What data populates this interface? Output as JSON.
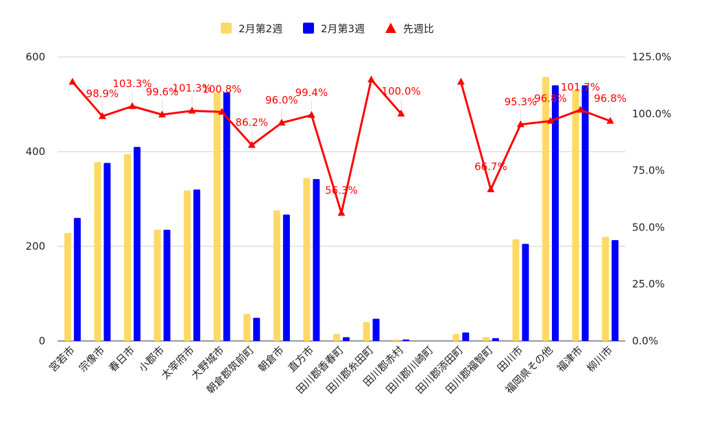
{
  "chart_data": {
    "type": "bar",
    "categories": [
      "宮若市",
      "宗像市",
      "春日市",
      "小郡市",
      "太宰府市",
      "大野城市",
      "朝倉郡筑前町",
      "朝倉市",
      "直方市",
      "田川郡香春町",
      "田川郡糸田町",
      "田川郡赤村",
      "田川郡川崎町",
      "田川郡添田町",
      "田川郡福智町",
      "田川市",
      "福岡県その他",
      "福津市",
      "柳川市"
    ],
    "series": [
      {
        "name": "2月第2週",
        "kind": "bar",
        "axis": "left",
        "color": "#ffd966",
        "values": [
          228,
          378,
          395,
          235,
          318,
          525,
          57,
          276,
          344,
          15,
          40,
          3,
          0,
          15,
          8,
          215,
          558,
          530,
          220
        ]
      },
      {
        "name": "2月第3週",
        "kind": "bar",
        "axis": "left",
        "color": "#0000ff",
        "values": [
          260,
          376,
          410,
          235,
          320,
          525,
          49,
          267,
          342,
          8,
          47,
          3,
          0,
          18,
          6,
          205,
          540,
          540,
          213
        ]
      },
      {
        "name": "先週比",
        "kind": "line",
        "axis": "right",
        "color": "#ff0000",
        "values": [
          114.0,
          98.9,
          103.3,
          99.6,
          101.3,
          100.8,
          86.2,
          96.0,
          99.4,
          56.3,
          115.0,
          100.0,
          null,
          114.0,
          66.7,
          95.3,
          96.8,
          101.7,
          96.8
        ],
        "labels": [
          "",
          "98.9%",
          "103.3%",
          "99.6%",
          "101.3%",
          "100.8%",
          "86.2%",
          "96.0%",
          "99.4%",
          "56.3%",
          "",
          "100.0%",
          "",
          "",
          "66.7%",
          "95.3%",
          "96.8%",
          "101.7%",
          "96.8%"
        ]
      }
    ],
    "y_left": {
      "min": 0,
      "max": 600,
      "ticks": [
        "0",
        "200",
        "400",
        "600"
      ],
      "tick_values": [
        0,
        200,
        400,
        600
      ]
    },
    "y_right": {
      "min": 0,
      "max": 125,
      "ticks": [
        "0.0%",
        "25.0%",
        "50.0%",
        "75.0%",
        "100.0%",
        "125.0%"
      ],
      "tick_values": [
        0,
        25,
        50,
        75,
        100,
        125
      ]
    },
    "gridlines": true,
    "legend_position": "top-center"
  }
}
